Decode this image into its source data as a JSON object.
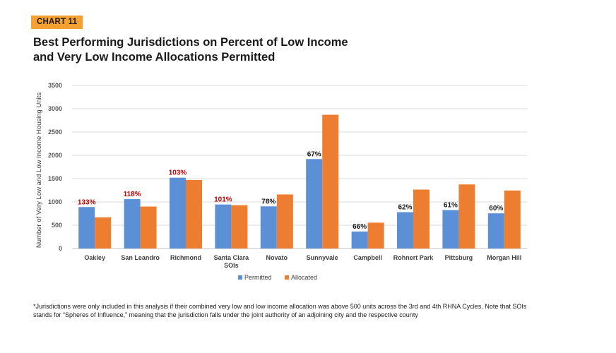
{
  "badge": "CHART 11",
  "title_line1": "Best Performing Jurisdictions on Percent of Low Income",
  "title_line2": "and Very Low Income Allocations Permitted",
  "footnote": "*Jurisdictions were only included in this analysis if their combined very low and low income allocation was above 500 units across the 3rd and 4th RHNA Cycles. Note that SOIs stands for “Spheres of Influence,” meaning that the jurisdiction falls under the joint authority of an adjoining city and the respective county",
  "colors": {
    "permitted": "#5b8fd6",
    "allocated": "#ed7d31",
    "highlight": "#c00000",
    "normal": "#1a1a1a"
  },
  "chart_data": {
    "type": "bar",
    "ylabel": "Number of Very Low and Low Income Housing Units",
    "ylim": [
      0,
      3500
    ],
    "yticks": [
      0,
      500,
      1000,
      1500,
      2000,
      2500,
      3000,
      3500
    ],
    "grid": true,
    "legend_position": "bottom",
    "categories": [
      "Oakley",
      "San Leandro",
      "Richmond",
      "Santa Clara SOIs",
      "Novato",
      "Sunnyvale",
      "Campbell",
      "Rohnert Park",
      "Pittsburg",
      "Morgan Hill"
    ],
    "category_lines": [
      [
        "Oakley"
      ],
      [
        "San Leandro"
      ],
      [
        "Richmond"
      ],
      [
        "Santa Clara",
        "SOIs"
      ],
      [
        "Novato"
      ],
      [
        "Sunnyvale"
      ],
      [
        "Campbell"
      ],
      [
        "Rohnert Park"
      ],
      [
        "Pittsburg"
      ],
      [
        "Morgan Hill"
      ]
    ],
    "series": [
      {
        "name": "Permitted",
        "values": [
          890,
          1060,
          1520,
          945,
          905,
          1920,
          365,
          780,
          825,
          755
        ]
      },
      {
        "name": "Allocated",
        "values": [
          670,
          900,
          1470,
          930,
          1160,
          2870,
          555,
          1265,
          1375,
          1245
        ]
      }
    ],
    "data_labels": [
      "133%",
      "118%",
      "103%",
      "101%",
      "78%",
      "67%",
      "66%",
      "62%",
      "61%",
      "60%"
    ],
    "data_label_highlighted": [
      true,
      true,
      true,
      true,
      false,
      false,
      false,
      false,
      false,
      false
    ]
  }
}
